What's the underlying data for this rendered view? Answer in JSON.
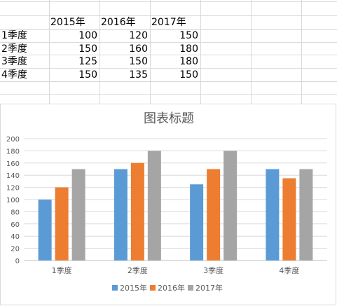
{
  "sheet": {
    "header_row": [
      "",
      "2015年",
      "2016年",
      "2017年"
    ],
    "rows": [
      {
        "label": "1季度",
        "v2015": "100",
        "v2016": "120",
        "v2017": "150"
      },
      {
        "label": "2季度",
        "v2015": "150",
        "v2016": "160",
        "v2017": "180"
      },
      {
        "label": "3季度",
        "v2015": "125",
        "v2016": "150",
        "v2017": "180"
      },
      {
        "label": "4季度",
        "v2015": "150",
        "v2016": "135",
        "v2017": "150"
      }
    ]
  },
  "chart_data": {
    "type": "bar",
    "title": "图表标题",
    "categories": [
      "1季度",
      "2季度",
      "3季度",
      "4季度"
    ],
    "series": [
      {
        "name": "2015年",
        "color": "#5b9bd5",
        "values": [
          100,
          150,
          125,
          150
        ]
      },
      {
        "name": "2016年",
        "color": "#ed7d31",
        "values": [
          120,
          160,
          150,
          135
        ]
      },
      {
        "name": "2017年",
        "color": "#a5a5a5",
        "values": [
          150,
          180,
          180,
          150
        ]
      }
    ],
    "ylim": [
      0,
      200
    ],
    "yticks": [
      "0",
      "20",
      "40",
      "60",
      "80",
      "100",
      "120",
      "140",
      "160",
      "180",
      "200"
    ],
    "grid": true,
    "legend": "bottom"
  }
}
